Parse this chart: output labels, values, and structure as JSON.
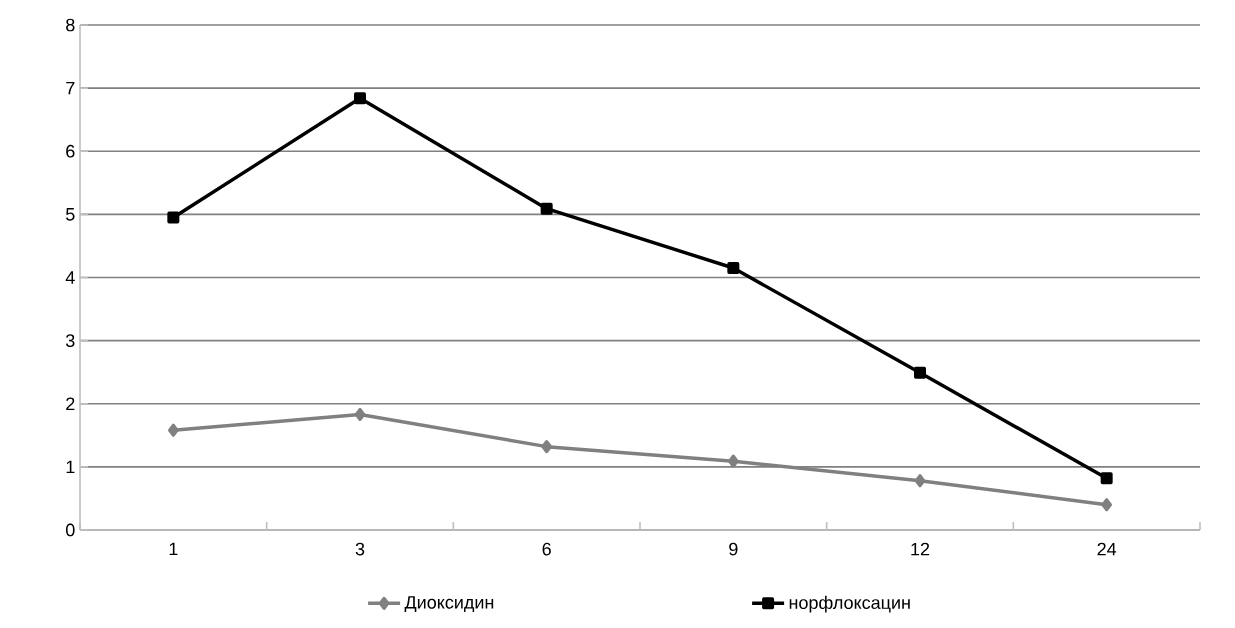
{
  "chart_data": {
    "type": "line",
    "categories": [
      "1",
      "3",
      "6",
      "9",
      "12",
      "24"
    ],
    "series": [
      {
        "name": "Диоксидин",
        "color": "#808080",
        "marker": "diamond",
        "values": [
          1.58,
          1.83,
          1.32,
          1.09,
          0.78,
          0.4
        ]
      },
      {
        "name": "норфлоксацин",
        "color": "#000000",
        "marker": "square",
        "values": [
          4.95,
          6.84,
          5.09,
          4.15,
          2.49,
          0.82
        ]
      }
    ],
    "ylim": [
      0,
      8
    ],
    "yticks": [
      0,
      1,
      2,
      3,
      4,
      5,
      6,
      7,
      8
    ],
    "grid": "y",
    "legend": "bottom",
    "line_style": "solid"
  }
}
